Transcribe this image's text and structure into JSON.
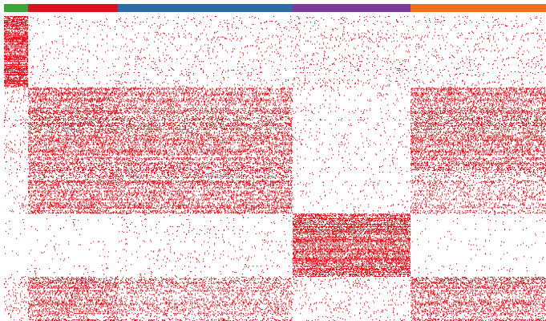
{
  "chart_data": {
    "type": "heatmap",
    "title": "",
    "xlabel": "",
    "ylabel": "",
    "legend": false,
    "grid": false,
    "value_type": "binary",
    "colors": {
      "present": "#e8101a",
      "absent": "#ffffff",
      "groups": [
        "#3aa53a",
        "#d7141e",
        "#2e6aa8",
        "#7b3b97",
        "#f36f18"
      ]
    },
    "column_groups": [
      {
        "index": 1,
        "color": "#3aa53a",
        "columns": 30
      },
      {
        "index": 2,
        "color": "#d7141e",
        "columns": 112
      },
      {
        "index": 3,
        "color": "#2e6aa8",
        "columns": 218
      },
      {
        "index": 4,
        "color": "#7b3b97",
        "columns": 147
      },
      {
        "index": 5,
        "color": "#f36f18",
        "columns": 169
      }
    ],
    "row_count": 386,
    "blocks": [
      {
        "rows": [
          0,
          90
        ],
        "density": [
          0.55,
          0.02,
          0.03,
          0.04,
          0.03
        ]
      },
      {
        "rows": [
          90,
          140
        ],
        "density": [
          0.04,
          0.32,
          0.24,
          0.02,
          0.28
        ]
      },
      {
        "rows": [
          140,
          195
        ],
        "density": [
          0.04,
          0.28,
          0.26,
          0.02,
          0.27
        ]
      },
      {
        "rows": [
          195,
          250
        ],
        "density": [
          0.03,
          0.3,
          0.3,
          0.02,
          0.16
        ]
      },
      {
        "rows": [
          250,
          330
        ],
        "density": [
          0.01,
          0.01,
          0.02,
          0.45,
          0.01
        ]
      },
      {
        "rows": [
          330,
          386
        ],
        "density": [
          0.06,
          0.3,
          0.18,
          0.04,
          0.28
        ]
      }
    ]
  }
}
